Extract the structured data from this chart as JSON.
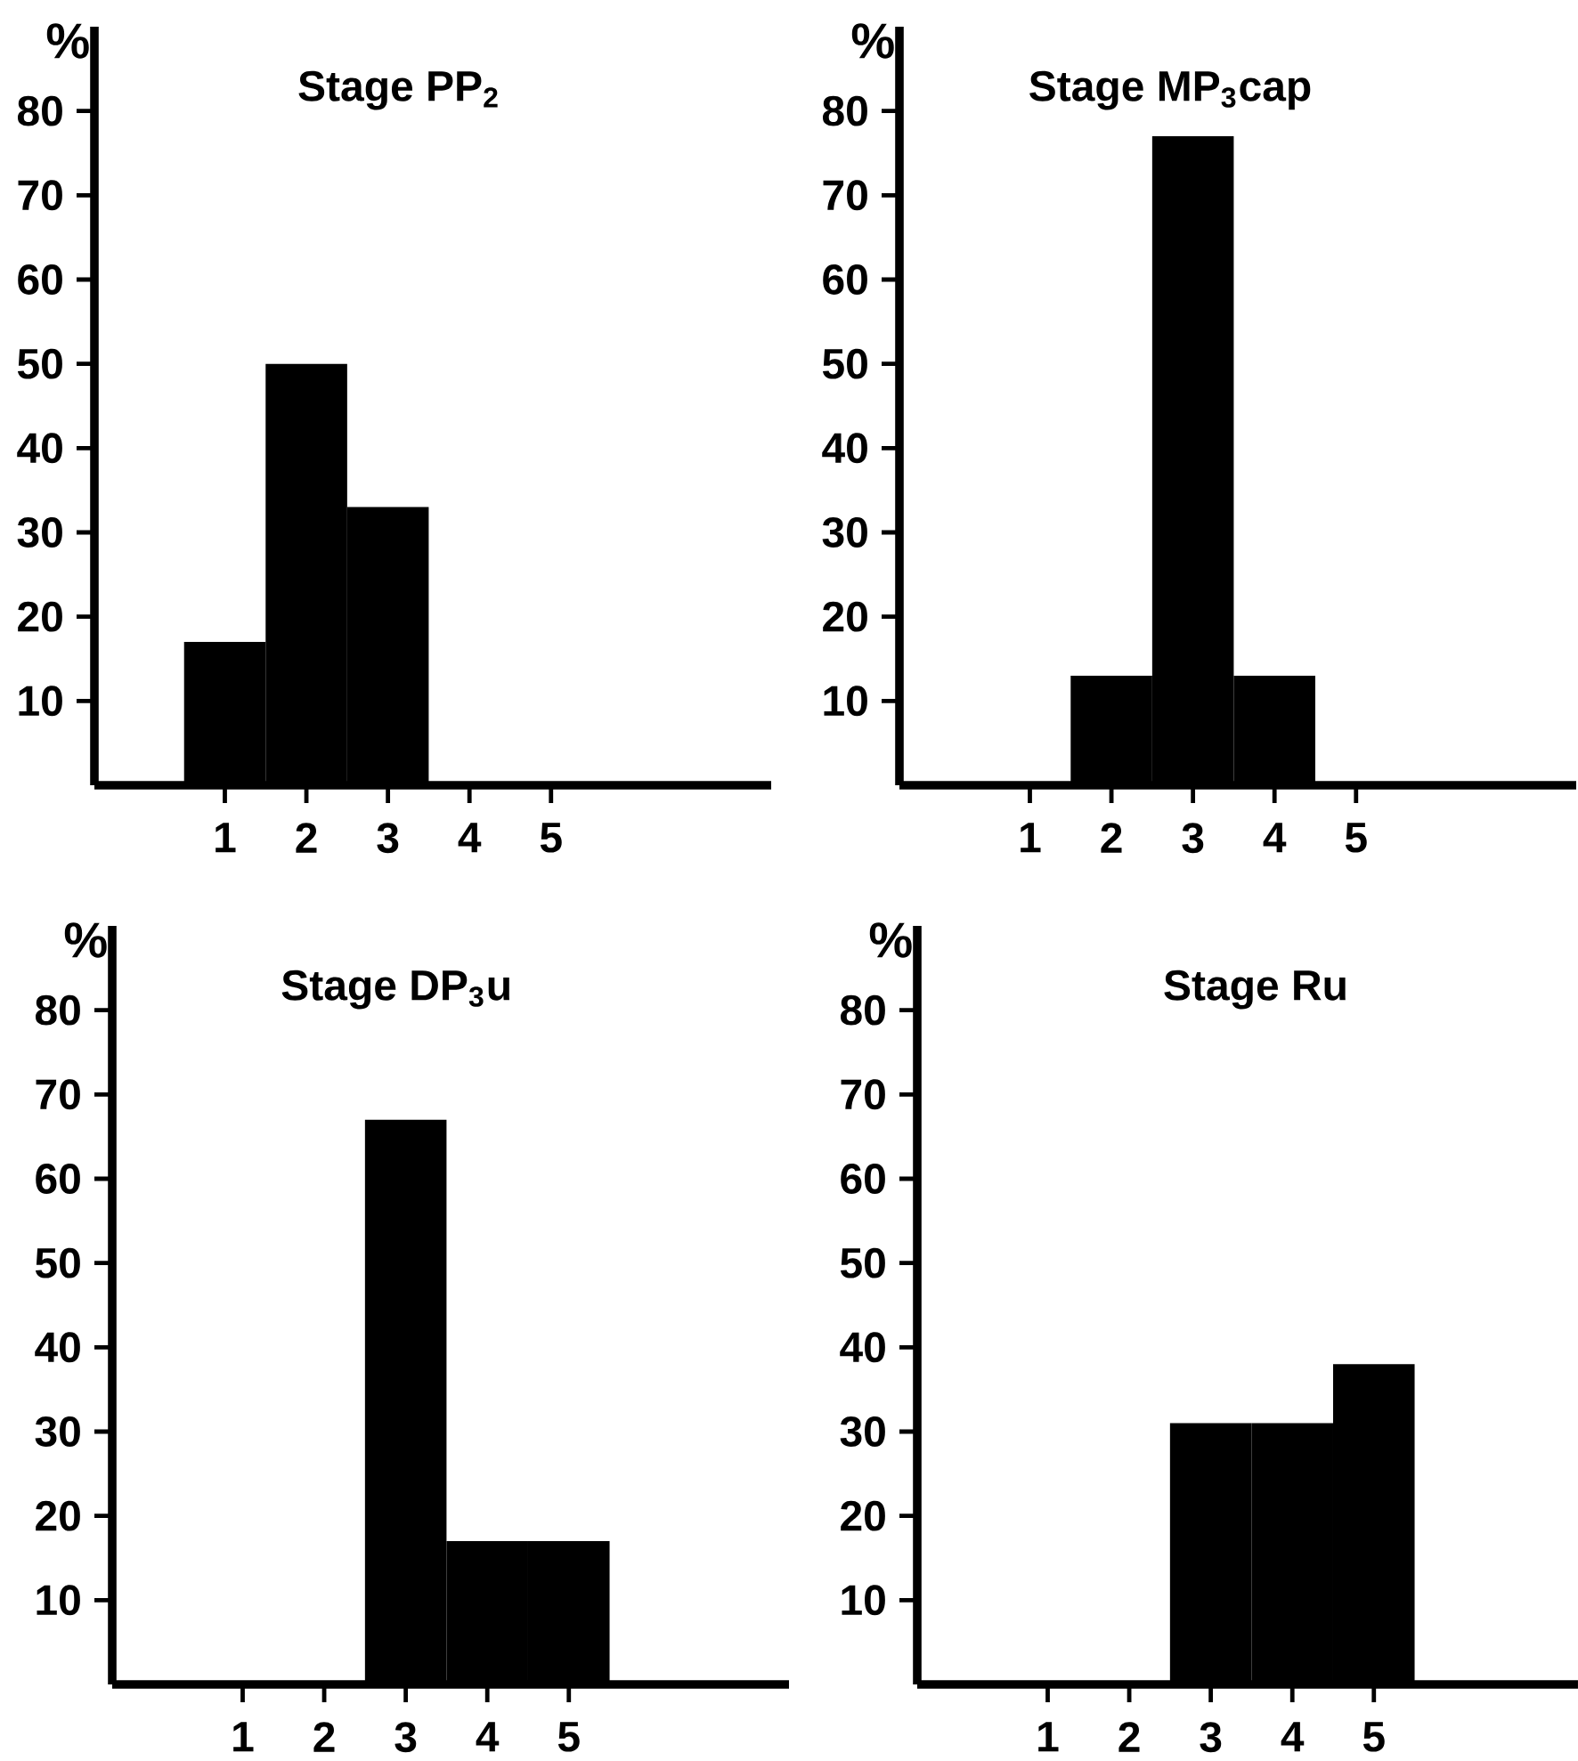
{
  "chart_data": [
    {
      "type": "bar",
      "title": "Stage PP$_{2}$",
      "ylabel": "%",
      "categories": [
        "1",
        "2",
        "3",
        "4",
        "5"
      ],
      "values": [
        17,
        50,
        33,
        0,
        0
      ],
      "color": "#000000",
      "ylim": [
        0,
        90
      ],
      "yticks": [
        10,
        20,
        30,
        40,
        50,
        60,
        70,
        80
      ]
    },
    {
      "type": "bar",
      "title": "Stage MP$_{3}$cap",
      "ylabel": "%",
      "categories": [
        "1",
        "2",
        "3",
        "4",
        "5"
      ],
      "values": [
        0,
        13,
        77,
        13,
        0
      ],
      "color": "#000000",
      "ylim": [
        0,
        90
      ],
      "yticks": [
        10,
        20,
        30,
        40,
        50,
        60,
        70,
        80
      ]
    },
    {
      "type": "bar",
      "title": "Stage DP$_{3}$u",
      "ylabel": "%",
      "categories": [
        "1",
        "2",
        "3",
        "4",
        "5"
      ],
      "values": [
        0,
        0,
        67,
        17,
        17
      ],
      "color": "#000000",
      "ylim": [
        0,
        90
      ],
      "yticks": [
        10,
        20,
        30,
        40,
        50,
        60,
        70,
        80
      ]
    },
    {
      "type": "bar",
      "title": "Stage Ru",
      "ylabel": "%",
      "categories": [
        "1",
        "2",
        "3",
        "4",
        "5"
      ],
      "values": [
        0,
        0,
        31,
        31,
        38
      ],
      "color": "#000000",
      "ylim": [
        0,
        90
      ],
      "yticks": [
        10,
        20,
        30,
        40,
        50,
        60,
        70,
        80
      ]
    }
  ]
}
